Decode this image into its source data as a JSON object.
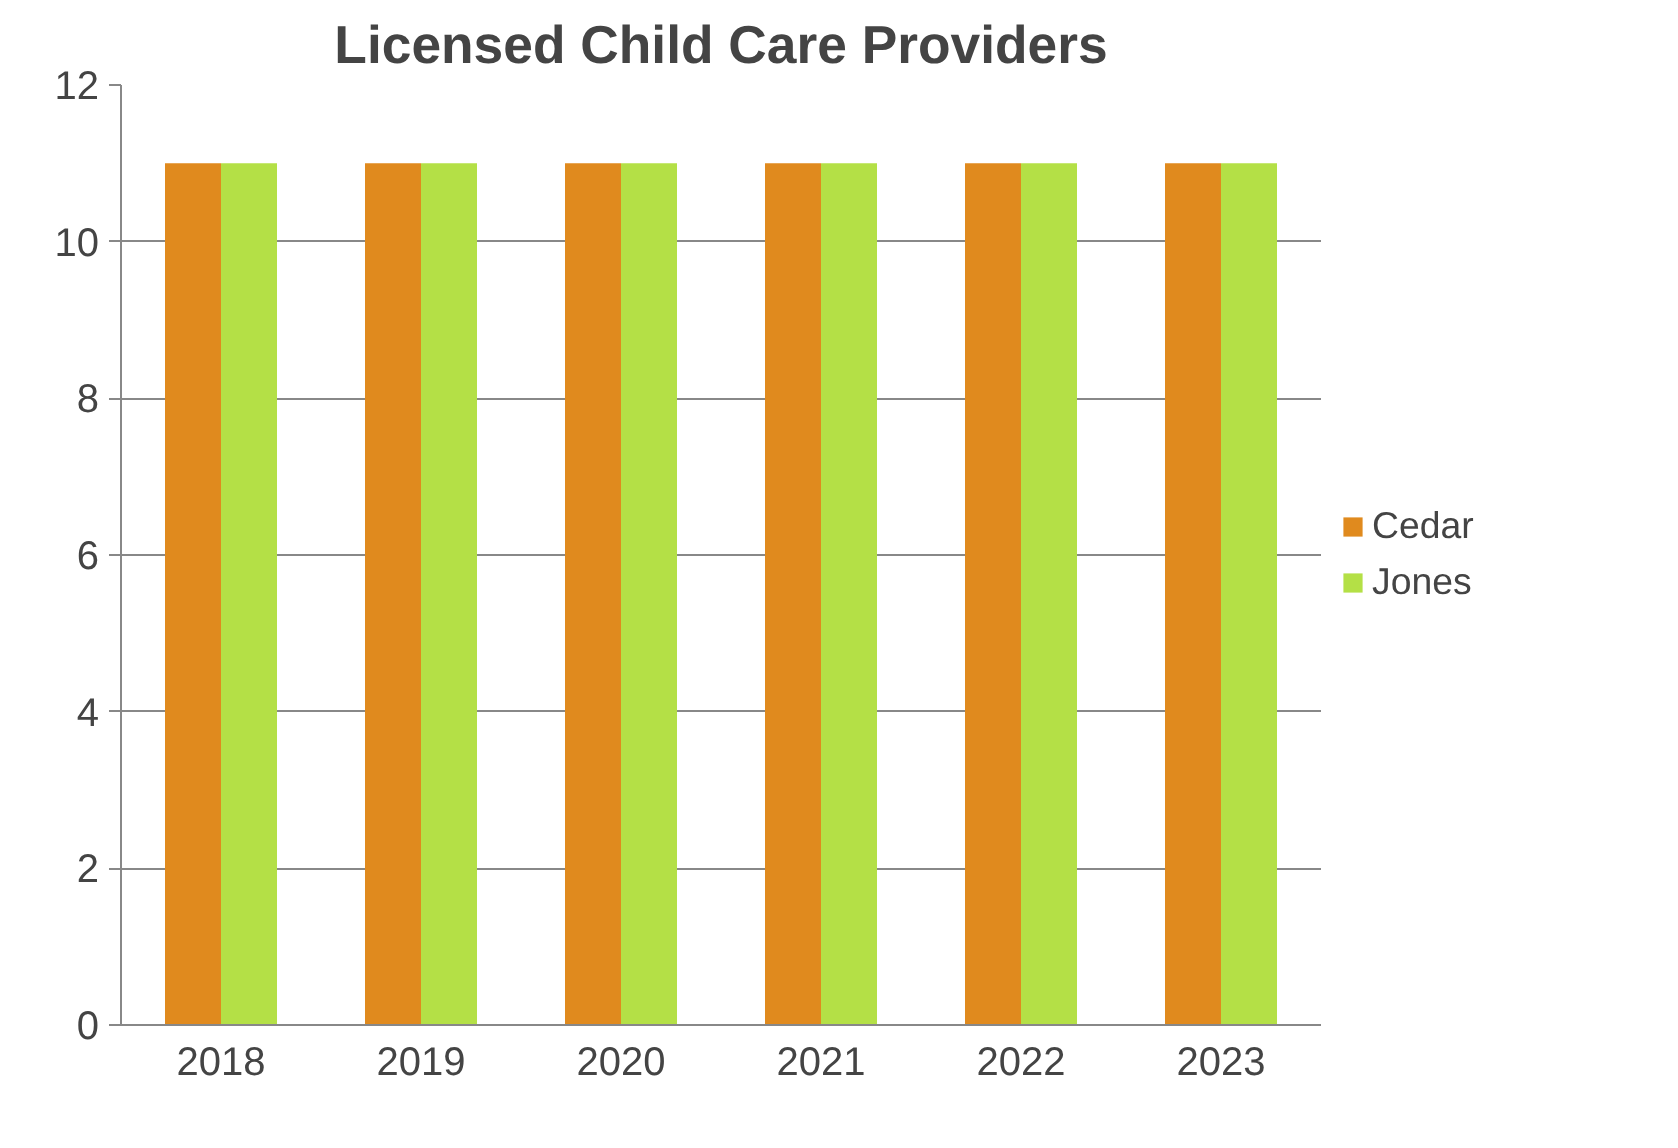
{
  "chart_data": {
    "type": "bar",
    "title": "Licensed Child Care Providers",
    "categories": [
      "2018",
      "2019",
      "2020",
      "2021",
      "2022",
      "2023"
    ],
    "series": [
      {
        "name": "Cedar",
        "color": "#e08a1e",
        "values": [
          11,
          11,
          11,
          11,
          11,
          11
        ]
      },
      {
        "name": "Jones",
        "color": "#b4e046",
        "values": [
          11,
          11,
          11,
          11,
          11,
          11
        ]
      }
    ],
    "ylim": [
      0,
      12
    ],
    "yticks": [
      0,
      2,
      4,
      6,
      8,
      10,
      12
    ],
    "grid": "y",
    "legend": "right"
  }
}
